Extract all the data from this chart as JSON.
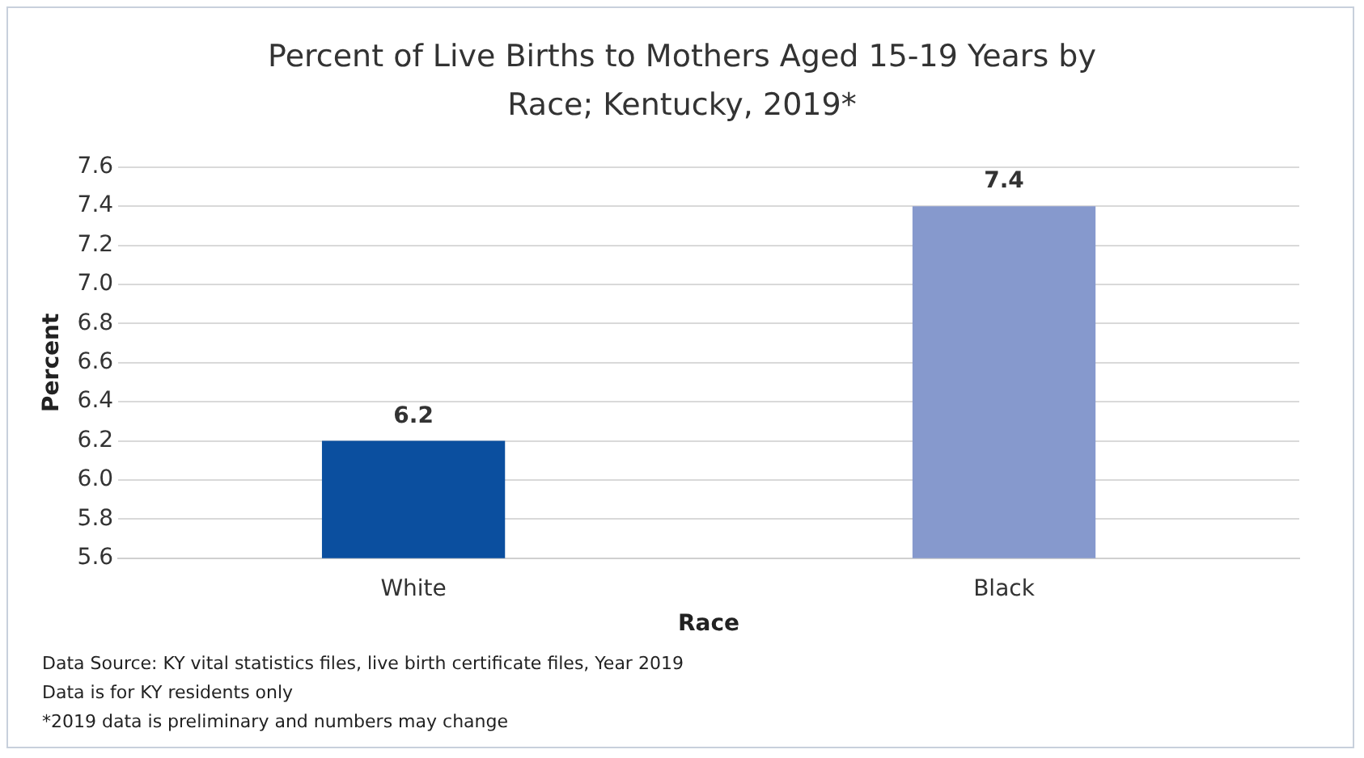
{
  "chart_data": {
    "type": "bar",
    "title": "Percent of Live Births to Mothers Aged 15-19 Years by Race; Kentucky, 2019*",
    "xlabel": "Race",
    "ylabel": "Percent",
    "categories": [
      "White",
      "Black"
    ],
    "values": [
      6.2,
      7.4
    ],
    "colors": [
      "#0b4f9f",
      "#8699cd"
    ],
    "ylim": [
      5.6,
      7.6
    ],
    "yticks": [
      {
        "value": 5.6,
        "label": "5.6"
      },
      {
        "value": 5.8,
        "label": "5.8"
      },
      {
        "value": 6,
        "label": "6.0"
      },
      {
        "value": 6.2,
        "label": "6.2"
      },
      {
        "value": 6.4,
        "label": "6.4"
      },
      {
        "value": 6.6,
        "label": "6.6"
      },
      {
        "value": 6.8,
        "label": "6.8"
      },
      {
        "value": 7,
        "label": "7.0"
      },
      {
        "value": 7.2,
        "label": "7.2"
      },
      {
        "value": 7.4,
        "label": "7.4"
      },
      {
        "value": 7.6,
        "label": "7.6"
      }
    ],
    "grid": "y",
    "legend": false,
    "data_labels": true,
    "annotations": [
      "Data Source: KY vital statistics files, live birth certificate files, Year 2019",
      "Data is for KY residents only",
      "*2019 data is preliminary and numbers may change"
    ]
  }
}
